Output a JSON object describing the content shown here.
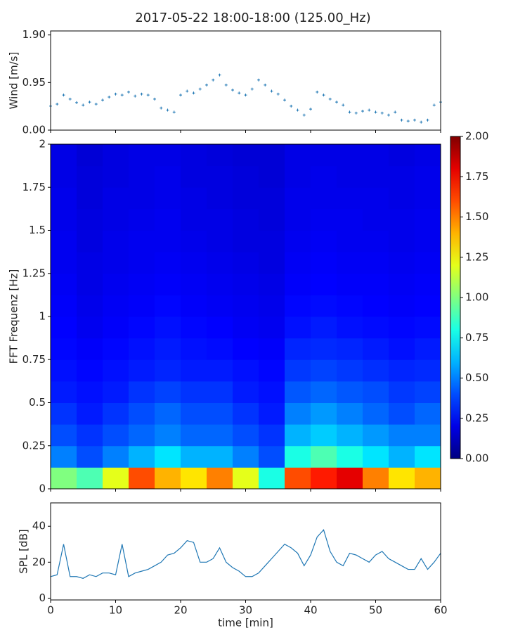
{
  "chart_data": [
    {
      "type": "scatter",
      "title": "2017-05-22 18:00-18:00 (125.00_Hz)",
      "ylabel": "Wind [m/s]",
      "color": "#1f77b4",
      "x": [
        0,
        1,
        2,
        3,
        4,
        5,
        6,
        7,
        8,
        9,
        10,
        11,
        12,
        13,
        14,
        15,
        16,
        17,
        18,
        19,
        20,
        21,
        22,
        23,
        24,
        25,
        26,
        27,
        28,
        29,
        30,
        31,
        32,
        33,
        34,
        35,
        36,
        37,
        38,
        39,
        40,
        41,
        42,
        43,
        44,
        45,
        46,
        47,
        48,
        49,
        50,
        51,
        52,
        53,
        54,
        55,
        56,
        57,
        58,
        59,
        60
      ],
      "y": [
        0.48,
        0.52,
        0.7,
        0.62,
        0.55,
        0.5,
        0.56,
        0.52,
        0.6,
        0.66,
        0.72,
        0.7,
        0.76,
        0.68,
        0.72,
        0.7,
        0.62,
        0.44,
        0.4,
        0.36,
        0.7,
        0.78,
        0.74,
        0.82,
        0.9,
        1.0,
        1.1,
        0.9,
        0.8,
        0.74,
        0.7,
        0.82,
        1.0,
        0.9,
        0.78,
        0.72,
        0.6,
        0.48,
        0.4,
        0.3,
        0.42,
        0.76,
        0.7,
        0.62,
        0.56,
        0.5,
        0.36,
        0.34,
        0.38,
        0.4,
        0.36,
        0.34,
        0.3,
        0.36,
        0.2,
        0.18,
        0.2,
        0.16,
        0.2,
        0.5,
        0.56
      ],
      "ylim": [
        0,
        1.98
      ],
      "yticks": [
        {
          "value": 0,
          "label": "0.00"
        },
        {
          "value": 0.95,
          "label": "0.95"
        },
        {
          "value": 1.9,
          "label": "1.90"
        }
      ]
    },
    {
      "type": "heatmap",
      "ylabel": "FFT Frequenz [Hz]",
      "colormap": "jet",
      "xbins": [
        0,
        4,
        8,
        12,
        16,
        20,
        24,
        28,
        32,
        36,
        40,
        44,
        48,
        52,
        56,
        60
      ],
      "ybins": [
        0,
        0.125,
        0.25,
        0.375,
        0.5,
        0.625,
        0.75,
        0.875,
        1,
        1.125,
        1.25,
        1.375,
        1.5,
        1.625,
        1.75,
        1.875,
        2
      ],
      "values": [
        [
          1.0,
          0.9,
          1.2,
          1.6,
          1.4,
          1.3,
          1.5,
          1.2,
          0.8,
          1.6,
          1.7,
          1.8,
          1.5,
          1.3,
          1.4
        ],
        [
          0.5,
          0.4,
          0.5,
          0.6,
          0.7,
          0.6,
          0.6,
          0.5,
          0.4,
          0.8,
          0.9,
          0.8,
          0.7,
          0.6,
          0.7
        ],
        [
          0.4,
          0.35,
          0.4,
          0.45,
          0.5,
          0.45,
          0.45,
          0.4,
          0.35,
          0.6,
          0.65,
          0.6,
          0.55,
          0.5,
          0.5
        ],
        [
          0.35,
          0.3,
          0.35,
          0.4,
          0.45,
          0.4,
          0.4,
          0.35,
          0.3,
          0.5,
          0.55,
          0.5,
          0.45,
          0.4,
          0.45
        ],
        [
          0.3,
          0.28,
          0.3,
          0.35,
          0.38,
          0.35,
          0.35,
          0.3,
          0.28,
          0.42,
          0.45,
          0.42,
          0.4,
          0.36,
          0.38
        ],
        [
          0.28,
          0.26,
          0.28,
          0.3,
          0.32,
          0.3,
          0.3,
          0.28,
          0.26,
          0.36,
          0.38,
          0.36,
          0.34,
          0.32,
          0.33
        ],
        [
          0.26,
          0.24,
          0.26,
          0.28,
          0.3,
          0.28,
          0.27,
          0.25,
          0.24,
          0.32,
          0.33,
          0.32,
          0.3,
          0.28,
          0.3
        ],
        [
          0.25,
          0.22,
          0.24,
          0.26,
          0.28,
          0.26,
          0.25,
          0.23,
          0.22,
          0.28,
          0.3,
          0.28,
          0.27,
          0.26,
          0.27
        ],
        [
          0.24,
          0.21,
          0.23,
          0.24,
          0.26,
          0.24,
          0.23,
          0.22,
          0.21,
          0.26,
          0.27,
          0.26,
          0.25,
          0.24,
          0.25
        ],
        [
          0.23,
          0.2,
          0.22,
          0.23,
          0.24,
          0.23,
          0.22,
          0.21,
          0.2,
          0.24,
          0.25,
          0.24,
          0.24,
          0.23,
          0.24
        ],
        [
          0.22,
          0.2,
          0.21,
          0.22,
          0.23,
          0.22,
          0.21,
          0.2,
          0.19,
          0.23,
          0.24,
          0.23,
          0.23,
          0.22,
          0.23
        ],
        [
          0.22,
          0.19,
          0.21,
          0.22,
          0.22,
          0.21,
          0.2,
          0.19,
          0.19,
          0.22,
          0.23,
          0.22,
          0.22,
          0.21,
          0.22
        ],
        [
          0.21,
          0.19,
          0.2,
          0.21,
          0.22,
          0.2,
          0.2,
          0.19,
          0.18,
          0.21,
          0.22,
          0.22,
          0.21,
          0.21,
          0.22
        ],
        [
          0.21,
          0.18,
          0.2,
          0.2,
          0.21,
          0.2,
          0.19,
          0.18,
          0.18,
          0.21,
          0.21,
          0.21,
          0.21,
          0.2,
          0.21
        ],
        [
          0.2,
          0.18,
          0.19,
          0.2,
          0.21,
          0.19,
          0.19,
          0.18,
          0.17,
          0.2,
          0.21,
          0.2,
          0.2,
          0.2,
          0.21
        ],
        [
          0.2,
          0.17,
          0.19,
          0.2,
          0.2,
          0.19,
          0.18,
          0.17,
          0.17,
          0.2,
          0.2,
          0.2,
          0.2,
          0.19,
          0.2
        ]
      ],
      "ylim": [
        0,
        2
      ],
      "yticks": [
        0,
        0.25,
        0.5,
        0.75,
        1,
        1.25,
        1.5,
        1.75,
        2
      ],
      "clim": [
        0,
        2
      ],
      "cticks": [
        {
          "value": 0,
          "label": "0.00"
        },
        {
          "value": 0.25,
          "label": "0.25"
        },
        {
          "value": 0.5,
          "label": "0.50"
        },
        {
          "value": 0.75,
          "label": "0.75"
        },
        {
          "value": 1,
          "label": "1.00"
        },
        {
          "value": 1.25,
          "label": "1.25"
        },
        {
          "value": 1.5,
          "label": "1.50"
        },
        {
          "value": 1.75,
          "label": "1.75"
        },
        {
          "value": 2,
          "label": "2.00"
        }
      ]
    },
    {
      "type": "line",
      "ylabel": "SPL [dB]",
      "xlabel": "time [min]",
      "color": "#1f77b4",
      "x": [
        0,
        1,
        2,
        3,
        4,
        5,
        6,
        7,
        8,
        9,
        10,
        11,
        12,
        13,
        14,
        15,
        16,
        17,
        18,
        19,
        20,
        21,
        22,
        23,
        24,
        25,
        26,
        27,
        28,
        29,
        30,
        31,
        32,
        33,
        34,
        35,
        36,
        37,
        38,
        39,
        40,
        41,
        42,
        43,
        44,
        45,
        46,
        47,
        48,
        49,
        50,
        51,
        52,
        53,
        54,
        55,
        56,
        57,
        58,
        59,
        60
      ],
      "values": [
        12,
        13,
        30,
        12,
        12,
        11,
        13,
        12,
        14,
        14,
        13,
        30,
        12,
        14,
        15,
        16,
        18,
        20,
        24,
        25,
        28,
        32,
        31,
        20,
        20,
        22,
        28,
        20,
        17,
        15,
        12,
        12,
        14,
        18,
        22,
        26,
        30,
        28,
        25,
        18,
        24,
        34,
        38,
        26,
        20,
        18,
        25,
        24,
        22,
        20,
        24,
        26,
        22,
        20,
        18,
        16,
        16,
        22,
        16,
        20,
        25
      ],
      "xlim": [
        0,
        60
      ],
      "xticks": [
        0,
        10,
        20,
        30,
        40,
        50,
        60
      ],
      "ylim": [
        -1,
        53
      ],
      "yticks": [
        0,
        20,
        40
      ]
    }
  ]
}
